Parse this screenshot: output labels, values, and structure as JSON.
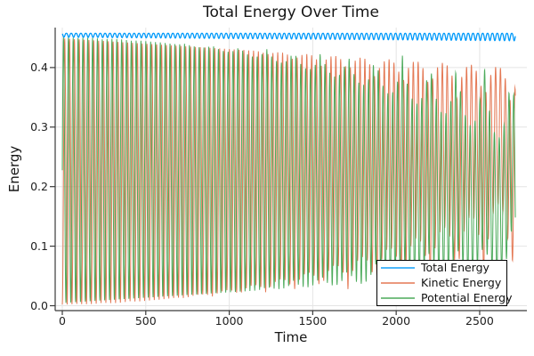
{
  "chart_data": {
    "type": "line",
    "title": "Total Energy Over Time",
    "xlabel": "Time",
    "ylabel": "Energy",
    "xticks": [
      "0",
      "500",
      "1000",
      "1500",
      "2000",
      "2500"
    ],
    "xtick_values": [
      0,
      500,
      1000,
      1500,
      2000,
      2500
    ],
    "yticks": [
      "0.0",
      "0.1",
      "0.2",
      "0.3",
      "0.4"
    ],
    "ytick_values": [
      0.0,
      0.1,
      0.2,
      0.3,
      0.4
    ],
    "xlim": [
      -42.65,
      2782.8
    ],
    "ylim": [
      -0.00822,
      0.4671
    ],
    "grid": true,
    "legend_position": "bottom-right",
    "series": [
      {
        "name": "Total Energy",
        "color": "#009AFA",
        "summary": "nearly constant ~0.4555; small sawtooth ripple, dip depth grows 0.006 to 0.012 over time"
      },
      {
        "name": "Kinetic Energy",
        "color": "#E26E47",
        "summary": "fast oscillation between envelopes; upper envelope decays 0.450 to 0.400, lower envelope rises 0.0 to ~0.18 with beating"
      },
      {
        "name": "Potential Energy",
        "color": "#3EA44E",
        "summary": "fast oscillation anti-phased with kinetic; upper envelope decays 0.450 to ~0.27, lower envelope rises 0.004 to ~0.05-0.13 with beating"
      }
    ],
    "envelope_samples": {
      "t": [
        0,
        500,
        1000,
        1500,
        2000,
        2500,
        2700
      ],
      "kinetic_max": [
        0.45,
        0.44,
        0.431,
        0.422,
        0.413,
        0.404,
        0.4
      ],
      "kinetic_min": [
        0.002,
        0.008,
        0.027,
        0.058,
        0.1,
        0.156,
        0.182
      ],
      "potential_max": [
        0.45,
        0.444,
        0.426,
        0.395,
        0.353,
        0.297,
        0.271
      ],
      "potential_min": [
        0.004,
        0.012,
        0.022,
        0.031,
        0.041,
        0.05,
        0.053
      ],
      "total_mean": [
        0.4545,
        0.4545,
        0.454,
        0.4535,
        0.453,
        0.4525,
        0.452
      ]
    },
    "synthesis": {
      "t_max": 2715,
      "dt": 1.2083,
      "period": 29,
      "beat_period": 163,
      "beat_exponent": 0.35,
      "total": {
        "top": 0.4575,
        "ripple0": 0.0065,
        "ripple_slope": 2.2e-06,
        "phase": 1.0,
        "dip_exponent": 1.5
      },
      "kinetic": {
        "hi0": 0.449,
        "hi_slope": 1.8e-05,
        "hi_sweep": 0.075,
        "sweep_start": 1100,
        "d0": 0.002,
        "d_slope": 1.4e-05,
        "b0": 0.002,
        "b_quad": 2.47e-08,
        "phase": 0.0
      },
      "potential": {
        "e_hi": 0.4525,
        "e_lo": 0.4535,
        "phase_offset": 1.5708
      }
    }
  },
  "style_colors": {
    "grid": "#e4e4e4",
    "axis": "#3a3a3a",
    "tick": "#3a3a3a",
    "text": "#151515",
    "background": "#ffffff"
  }
}
